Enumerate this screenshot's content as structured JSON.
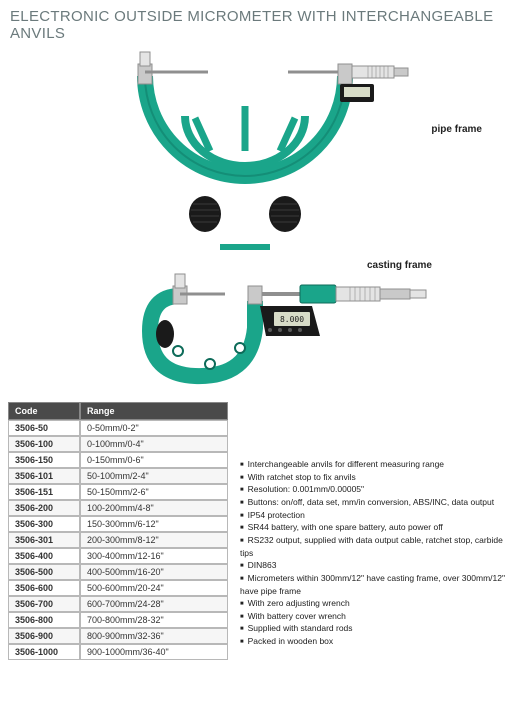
{
  "title": "ELECTRONIC OUTSIDE MICROMETER WITH INTERCHANGEABLE ANVILS",
  "labels": {
    "pipe": "pipe frame",
    "casting": "casting frame"
  },
  "colors": {
    "tool_green": "#1aa58a",
    "tool_dark": "#0d6b59",
    "grip_black": "#1a1a1a",
    "metal": "#c9c9c9",
    "metal_dark": "#8f8f8f",
    "display_bg": "#d8dcc8",
    "title_color": "#6b7a7c",
    "th_bg": "#4a4a4a",
    "border": "#b8b8b8"
  },
  "table": {
    "headers": [
      "Code",
      "Range"
    ],
    "rows": [
      [
        "3506-50",
        "0-50mm/0-2\""
      ],
      [
        "3506-100",
        "0-100mm/0-4\""
      ],
      [
        "3506-150",
        "0-150mm/0-6\""
      ],
      [
        "3506-101",
        "50-100mm/2-4\""
      ],
      [
        "3506-151",
        "50-150mm/2-6\""
      ],
      [
        "3506-200",
        "100-200mm/4-8\""
      ],
      [
        "3506-300",
        "150-300mm/6-12\""
      ],
      [
        "3506-301",
        "200-300mm/8-12\""
      ],
      [
        "3506-400",
        "300-400mm/12-16\""
      ],
      [
        "3506-500",
        "400-500mm/16-20\""
      ],
      [
        "3506-600",
        "500-600mm/20-24\""
      ],
      [
        "3506-700",
        "600-700mm/24-28\""
      ],
      [
        "3506-800",
        "700-800mm/28-32\""
      ],
      [
        "3506-900",
        "800-900mm/32-36\""
      ],
      [
        "3506-1000",
        "900-1000mm/36-40\""
      ]
    ]
  },
  "features": [
    "Interchangeable anvils for different measuring range",
    "With ratchet stop to fix anvils",
    "Resolution: 0.001mm/0.00005\"",
    "Buttons: on/off, data set, mm/in conversion, ABS/INC, data output",
    "IP54 protection",
    "SR44 battery, with one spare battery, auto power off",
    "RS232 output, supplied with data output cable, ratchet stop, carbide tips",
    "DIN863",
    "Micrometers within 300mm/12\" have casting frame, over 300mm/12\" have pipe frame",
    "With zero adjusting wrench",
    "With battery cover wrench",
    "Supplied with standard rods",
    "Packed in wooden box"
  ]
}
